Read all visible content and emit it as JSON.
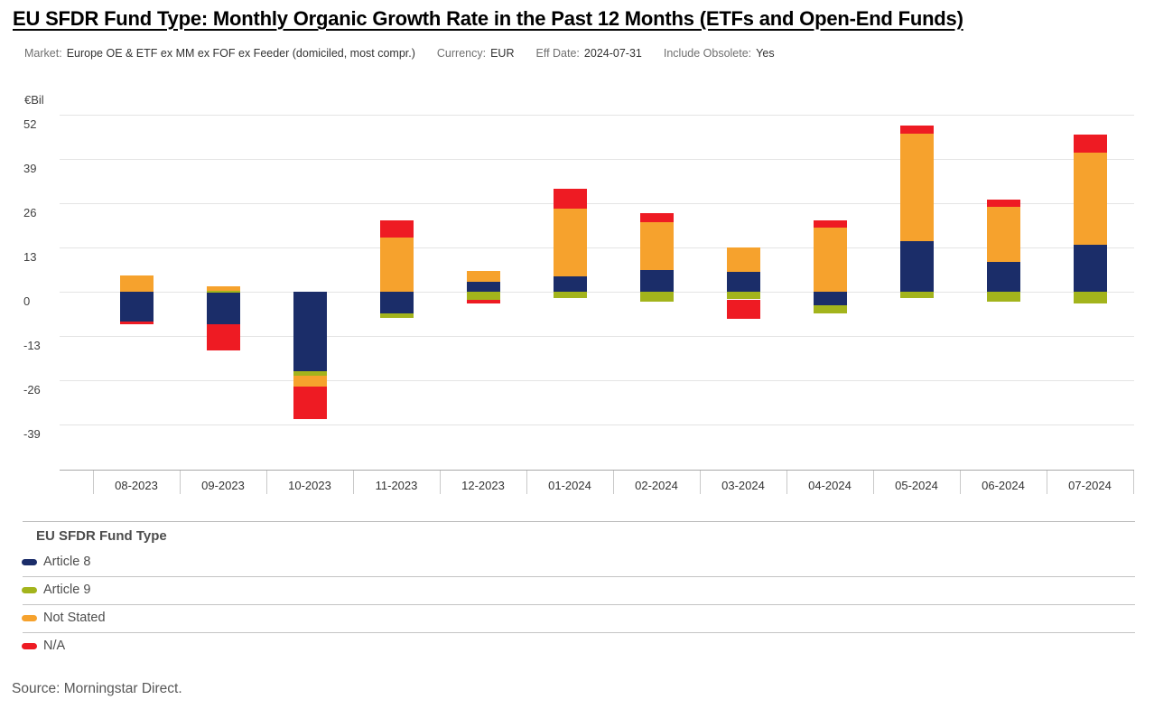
{
  "header": {
    "title": "EU SFDR Fund Type: Monthly Organic Growth Rate in the Past 12 Months (ETFs and Open-End Funds)",
    "filters": [
      {
        "label": "Market:",
        "value": "Europe OE & ETF ex MM ex FOF ex Feeder (domiciled, most compr.)"
      },
      {
        "label": "Currency:",
        "value": "EUR"
      },
      {
        "label": "Eff Date:",
        "value": "2024-07-31"
      },
      {
        "label": "Include Obsolete:",
        "value": "Yes"
      }
    ]
  },
  "chart_data": {
    "type": "bar",
    "stacked": true,
    "unit_label": "€Bil",
    "title": "EU SFDR Fund Type: Monthly Organic Growth Rate in the Past 12 Months (ETFs and Open-End Funds)",
    "categories": [
      "08-2023",
      "09-2023",
      "10-2023",
      "11-2023",
      "12-2023",
      "01-2024",
      "02-2024",
      "03-2024",
      "04-2024",
      "05-2024",
      "06-2024",
      "07-2024"
    ],
    "series": [
      {
        "name": "Article 8",
        "color": "#1b2d69",
        "values": [
          -8.6,
          -9.5,
          -23.3,
          -6.2,
          3.0,
          4.6,
          6.4,
          5.8,
          -4.0,
          14.9,
          8.8,
          13.9
        ]
      },
      {
        "name": "Article 9",
        "color": "#a3b41c",
        "values": [
          0.0,
          0.3,
          -1.3,
          -1.4,
          -2.3,
          -1.9,
          -2.9,
          -2.2,
          -2.4,
          -1.9,
          -3.0,
          -3.5
        ]
      },
      {
        "name": "Not Stated",
        "color": "#f6a22d",
        "values": [
          4.9,
          1.3,
          -3.1,
          16.1,
          3.1,
          19.9,
          14.1,
          7.2,
          19.0,
          31.5,
          16.1,
          26.9
        ]
      },
      {
        "name": "N/A",
        "color": "#ee1b23",
        "values": [
          -0.9,
          -7.6,
          -9.7,
          4.9,
          -1.2,
          5.7,
          2.7,
          -5.6,
          2.0,
          2.4,
          2.2,
          5.4
        ]
      }
    ],
    "y_ticks": [
      52,
      39,
      26,
      13,
      0,
      -13,
      -26,
      -39
    ],
    "ylim": [
      -52,
      52
    ],
    "grid": true,
    "legend_position": "bottom"
  },
  "legend": {
    "title": "EU SFDR Fund Type"
  },
  "source": "Source: Morningstar Direct."
}
